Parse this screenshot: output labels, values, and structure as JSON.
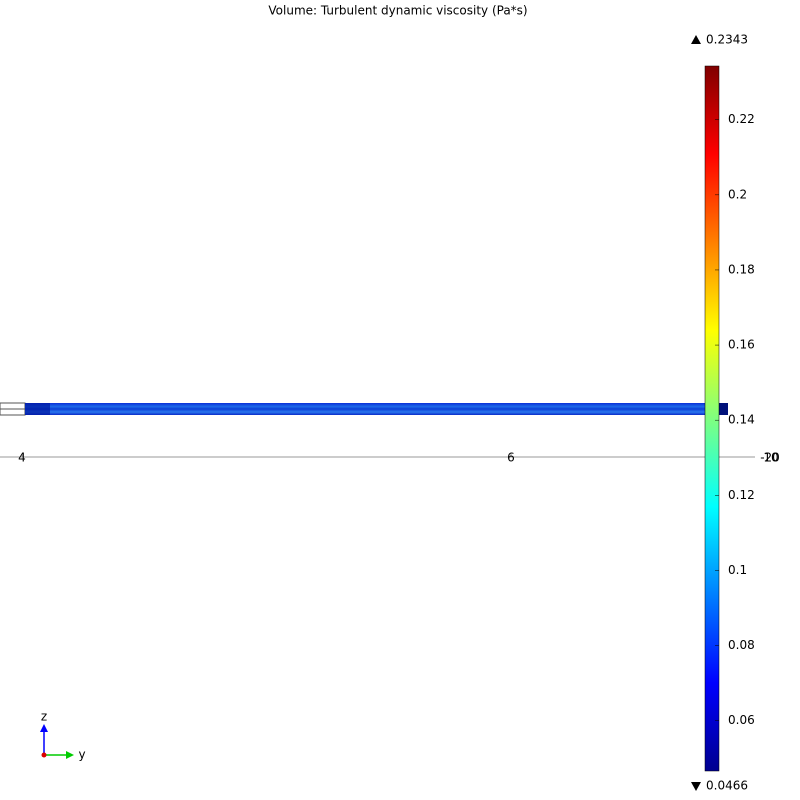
{
  "title": "Volume: Turbulent dynamic viscosity (Pa*s)",
  "colorbar": {
    "max": 0.2343,
    "min": 0.0466,
    "ticks": [
      0.06,
      0.08,
      0.1,
      0.12,
      0.14,
      0.16,
      0.18,
      0.2,
      0.22
    ]
  },
  "axis": {
    "ticks": [
      4,
      6
    ],
    "end_labels": [
      "-20",
      "10"
    ]
  },
  "triad": {
    "vertical": "z",
    "horizontal": "y"
  }
}
